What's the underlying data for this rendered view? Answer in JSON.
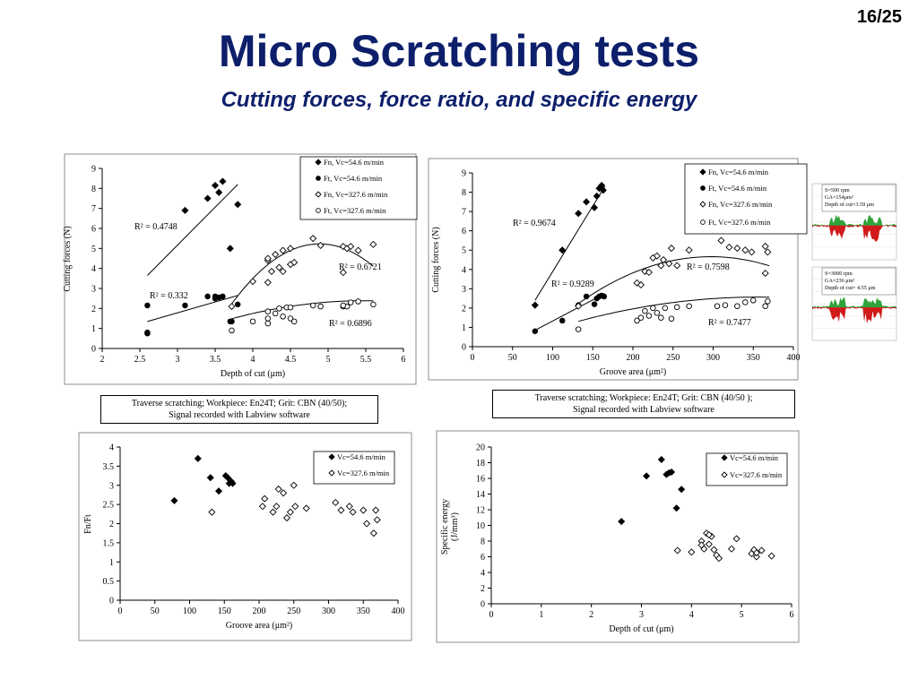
{
  "page_number": "16/25",
  "title": "Micro Scratching tests",
  "subtitle": "Cutting forces, force ratio, and specific energy",
  "captions": {
    "left": [
      "Traverse scratching; Workpiece: En24T; Grit: CBN (40/50);",
      "Signal recorded with Labview software"
    ],
    "right": [
      "Traverse scratching; Workpiece: En24T; Grit: CBN (40/50 );",
      "Signal recorded with Labview software"
    ]
  },
  "insets": {
    "top": [
      "S=500 rpm",
      "GA=154μm²",
      "Depth of cut=3.59 μm"
    ],
    "bottom": [
      "S=3000 rpm",
      "GA=236 μm²",
      "Depth of cut= 4.55 μm"
    ]
  },
  "colors": {
    "title": "#0d1f6b",
    "inset_red": "#d11a1a",
    "inset_green": "#2fa33a"
  },
  "chart_data": [
    {
      "type": "scatter",
      "xlabel": "Depth of cut (μm)",
      "ylabel": "Cutting forces (N)",
      "xlim": [
        2,
        6
      ],
      "ylim": [
        0,
        9
      ],
      "xticks": [
        "2",
        "2.5",
        "3",
        "3.5",
        "4",
        "4.5",
        "5",
        "5.5",
        "6"
      ],
      "yticks": [
        "0",
        "1",
        "2",
        "3",
        "4",
        "5",
        "6",
        "7",
        "8",
        "9"
      ],
      "legend": "top-right",
      "series": [
        {
          "name": "Fn, Vc=54.6 m/min",
          "marker": "diamond-filled",
          "points": [
            [
              3.1,
              6.9
            ],
            [
              3.4,
              7.5
            ],
            [
              3.5,
              8.15
            ],
            [
              3.55,
              7.8
            ],
            [
              3.6,
              8.35
            ],
            [
              3.8,
              7.2
            ],
            [
              3.7,
              5.0
            ]
          ]
        },
        {
          "name": "Ft, Vc=54.6 m/min",
          "marker": "circle-filled",
          "points": [
            [
              2.6,
              2.15
            ],
            [
              2.6,
              0.8
            ],
            [
              2.6,
              0.75
            ],
            [
              3.1,
              2.15
            ],
            [
              3.4,
              2.6
            ],
            [
              3.5,
              2.6
            ],
            [
              3.55,
              2.55
            ],
            [
              3.6,
              2.6
            ],
            [
              3.5,
              2.5
            ],
            [
              3.8,
              2.2
            ],
            [
              3.7,
              1.35
            ],
            [
              3.72,
              1.35
            ]
          ]
        },
        {
          "name": "Fn, Vc=327.6 m/min",
          "marker": "diamond-open",
          "points": [
            [
              3.72,
              2.1
            ],
            [
              4.0,
              3.35
            ],
            [
              4.2,
              4.4
            ],
            [
              4.2,
              4.5
            ],
            [
              4.3,
              4.7
            ],
            [
              4.35,
              4.05
            ],
            [
              4.4,
              3.85
            ],
            [
              4.2,
              3.3
            ],
            [
              4.25,
              3.85
            ],
            [
              4.5,
              4.2
            ],
            [
              4.55,
              4.3
            ],
            [
              4.5,
              5.0
            ],
            [
              4.8,
              5.5
            ],
            [
              4.9,
              5.15
            ],
            [
              5.2,
              5.1
            ],
            [
              5.25,
              5.0
            ],
            [
              5.3,
              5.1
            ],
            [
              5.4,
              4.9
            ],
            [
              5.6,
              5.2
            ],
            [
              5.2,
              3.8
            ],
            [
              4.4,
              4.9
            ]
          ]
        },
        {
          "name": "Ft, Vc=327.6 m/min",
          "marker": "circle-open",
          "points": [
            [
              3.72,
              0.9
            ],
            [
              4.0,
              1.35
            ],
            [
              4.2,
              1.85
            ],
            [
              4.2,
              1.5
            ],
            [
              4.2,
              1.25
            ],
            [
              4.3,
              1.75
            ],
            [
              4.35,
              2.0
            ],
            [
              4.4,
              1.6
            ],
            [
              4.45,
              2.05
            ],
            [
              4.5,
              2.05
            ],
            [
              4.5,
              1.5
            ],
            [
              4.55,
              1.35
            ],
            [
              4.8,
              2.15
            ],
            [
              4.9,
              2.1
            ],
            [
              5.2,
              2.1
            ],
            [
              5.25,
              2.1
            ],
            [
              5.3,
              2.3
            ],
            [
              5.4,
              2.35
            ],
            [
              5.6,
              2.2
            ],
            [
              5.2,
              2.15
            ]
          ]
        }
      ],
      "trendlines": [
        {
          "series": "Fn, Vc=54.6 m/min",
          "kind": "linear",
          "from": [
            2.6,
            3.65
          ],
          "to": [
            3.8,
            8.2
          ],
          "label": "R² = 0.4748"
        },
        {
          "series": "Ft, Vc=54.6 m/min",
          "kind": "linear",
          "from": [
            2.6,
            1.35
          ],
          "to": [
            3.8,
            2.65
          ],
          "label": "R² = 0.332"
        },
        {
          "series": "Fn, Vc=327.6 m/min",
          "kind": "quadratic",
          "coef": [
            -47.3,
            21.5,
            -2.2
          ],
          "range": [
            3.7,
            5.6
          ],
          "label": "R² = 0.6721"
        },
        {
          "series": "Ft, Vc=327.6 m/min",
          "kind": "quadratic",
          "coef": [
            -6.33,
            3.18,
            -0.29
          ],
          "range": [
            3.7,
            5.6
          ],
          "label": "R² = 0.6896"
        }
      ]
    },
    {
      "type": "scatter",
      "xlabel": "Groove area (μm²)",
      "ylabel": "Cutting forces (N)",
      "xlim": [
        0,
        400
      ],
      "ylim": [
        0,
        9
      ],
      "xticks": [
        "0",
        "50",
        "100",
        "150",
        "200",
        "250",
        "300",
        "350",
        "400"
      ],
      "yticks": [
        "0",
        "1",
        "2",
        "3",
        "4",
        "5",
        "6",
        "7",
        "8",
        "9"
      ],
      "legend": "top-right",
      "series": [
        {
          "name": "Fn, Vc=54.6 m/min",
          "marker": "diamond-filled",
          "points": [
            [
              78,
              2.15
            ],
            [
              112,
              5.0
            ],
            [
              132,
              6.9
            ],
            [
              142,
              7.5
            ],
            [
              152,
              7.2
            ],
            [
              155,
              7.8
            ],
            [
              158,
              8.2
            ],
            [
              161,
              8.35
            ],
            [
              163,
              8.1
            ]
          ]
        },
        {
          "name": "Ft, Vc=54.6 m/min",
          "marker": "circle-filled",
          "points": [
            [
              78,
              0.8
            ],
            [
              112,
              1.35
            ],
            [
              132,
              2.15
            ],
            [
              142,
              2.6
            ],
            [
              152,
              2.2
            ],
            [
              155,
              2.5
            ],
            [
              158,
              2.6
            ],
            [
              161,
              2.65
            ],
            [
              164,
              2.6
            ]
          ]
        },
        {
          "name": "Fn, Vc=327.6 m/min",
          "marker": "diamond-open",
          "points": [
            [
              132,
              2.1
            ],
            [
              205,
              3.3
            ],
            [
              210,
              3.2
            ],
            [
              215,
              3.9
            ],
            [
              220,
              3.85
            ],
            [
              225,
              4.6
            ],
            [
              230,
              4.7
            ],
            [
              235,
              4.2
            ],
            [
              238,
              4.5
            ],
            [
              245,
              4.3
            ],
            [
              248,
              5.1
            ],
            [
              255,
              4.2
            ],
            [
              270,
              5.0
            ],
            [
              310,
              5.5
            ],
            [
              320,
              5.15
            ],
            [
              330,
              5.1
            ],
            [
              340,
              5.0
            ],
            [
              348,
              4.9
            ],
            [
              365,
              5.2
            ],
            [
              368,
              4.9
            ],
            [
              365,
              3.8
            ]
          ]
        },
        {
          "name": "Ft, Vc=327.6 m/min",
          "marker": "circle-open",
          "points": [
            [
              132,
              0.9
            ],
            [
              205,
              1.35
            ],
            [
              210,
              1.5
            ],
            [
              215,
              1.85
            ],
            [
              220,
              1.6
            ],
            [
              225,
              2.0
            ],
            [
              230,
              1.75
            ],
            [
              235,
              1.5
            ],
            [
              240,
              2.0
            ],
            [
              248,
              1.45
            ],
            [
              255,
              2.05
            ],
            [
              270,
              2.1
            ],
            [
              305,
              2.1
            ],
            [
              315,
              2.15
            ],
            [
              330,
              2.1
            ],
            [
              340,
              2.3
            ],
            [
              350,
              2.4
            ],
            [
              365,
              2.1
            ],
            [
              368,
              2.35
            ]
          ]
        }
      ],
      "trendlines": [
        {
          "series": "Fn, Vc=54.6 m/min",
          "kind": "linear",
          "from": [
            78,
            2.4
          ],
          "to": [
            165,
            8.3
          ],
          "label": "R² = 0.9674"
        },
        {
          "series": "Ft, Vc=54.6 m/min",
          "kind": "linear",
          "from": [
            78,
            0.85
          ],
          "to": [
            165,
            2.75
          ],
          "label": "R² = 0.9289"
        },
        {
          "series": "Fn, Vc=327.6 m/min",
          "kind": "quadratic",
          "coef": [
            -3.2,
            0.0529,
            -8.9e-05
          ],
          "range": [
            132,
            370
          ],
          "label": "R² = 0.7598"
        },
        {
          "series": "Ft, Vc=327.6 m/min",
          "kind": "quadratic",
          "coef": [
            -0.6,
            0.0178,
            -2.5e-05
          ],
          "range": [
            132,
            370
          ],
          "label": "R² = 0.7477"
        }
      ]
    },
    {
      "type": "scatter",
      "xlabel": "Groove area (μm²)",
      "ylabel": "Fn/Ft",
      "xlim": [
        0,
        400
      ],
      "ylim": [
        0,
        4
      ],
      "xticks": [
        "0",
        "50",
        "100",
        "150",
        "200",
        "250",
        "300",
        "350",
        "400"
      ],
      "yticks": [
        "0",
        "0.5",
        "1",
        "1.5",
        "2",
        "2.5",
        "3",
        "3.5",
        "4"
      ],
      "legend": "top-right",
      "series": [
        {
          "name": "Vc=54.6 m/min",
          "marker": "diamond-filled",
          "points": [
            [
              78,
              2.6
            ],
            [
              112,
              3.7
            ],
            [
              130,
              3.2
            ],
            [
              142,
              2.85
            ],
            [
              152,
              3.25
            ],
            [
              155,
              3.2
            ],
            [
              157,
              3.05
            ],
            [
              160,
              3.1
            ],
            [
              162,
              3.05
            ]
          ]
        },
        {
          "name": "Vc=327.6 m/min",
          "marker": "diamond-open",
          "points": [
            [
              132,
              2.3
            ],
            [
              205,
              2.45
            ],
            [
              208,
              2.65
            ],
            [
              220,
              2.3
            ],
            [
              225,
              2.45
            ],
            [
              228,
              2.9
            ],
            [
              235,
              2.8
            ],
            [
              240,
              2.15
            ],
            [
              245,
              2.3
            ],
            [
              250,
              3.0
            ],
            [
              252,
              2.45
            ],
            [
              268,
              2.4
            ],
            [
              310,
              2.55
            ],
            [
              318,
              2.35
            ],
            [
              330,
              2.45
            ],
            [
              335,
              2.3
            ],
            [
              350,
              2.35
            ],
            [
              355,
              2.0
            ],
            [
              365,
              1.75
            ],
            [
              368,
              2.35
            ],
            [
              370,
              2.1
            ]
          ]
        }
      ]
    },
    {
      "type": "scatter",
      "xlabel": "Depth of cut (μm)",
      "ylabel": "Specific energy (J/mm³)",
      "xlim": [
        0,
        6
      ],
      "ylim": [
        0,
        20
      ],
      "xticks": [
        "0",
        "1",
        "2",
        "3",
        "4",
        "5",
        "6"
      ],
      "yticks": [
        "0",
        "2",
        "4",
        "6",
        "8",
        "10",
        "12",
        "14",
        "16",
        "18",
        "20"
      ],
      "legend": "top-right",
      "series": [
        {
          "name": "Vc=54.6 m/min",
          "marker": "diamond-filled",
          "points": [
            [
              2.6,
              10.5
            ],
            [
              3.1,
              16.3
            ],
            [
              3.4,
              18.4
            ],
            [
              3.5,
              16.5
            ],
            [
              3.55,
              16.7
            ],
            [
              3.6,
              16.8
            ],
            [
              3.7,
              12.2
            ],
            [
              3.8,
              14.6
            ]
          ]
        },
        {
          "name": "Vc=327.6 m/min",
          "marker": "diamond-open",
          "points": [
            [
              3.72,
              6.8
            ],
            [
              4.0,
              6.6
            ],
            [
              4.2,
              8.0
            ],
            [
              4.25,
              7.0
            ],
            [
              4.3,
              9.0
            ],
            [
              4.35,
              7.6
            ],
            [
              4.4,
              8.6
            ],
            [
              4.45,
              6.9
            ],
            [
              4.5,
              6.2
            ],
            [
              4.55,
              5.8
            ],
            [
              4.8,
              7.0
            ],
            [
              4.9,
              8.3
            ],
            [
              5.2,
              6.4
            ],
            [
              5.25,
              6.9
            ],
            [
              5.3,
              6.0
            ],
            [
              5.3,
              6.5
            ],
            [
              5.4,
              6.8
            ],
            [
              5.6,
              6.1
            ],
            [
              4.2,
              7.5
            ],
            [
              4.35,
              8.8
            ]
          ]
        }
      ]
    }
  ]
}
